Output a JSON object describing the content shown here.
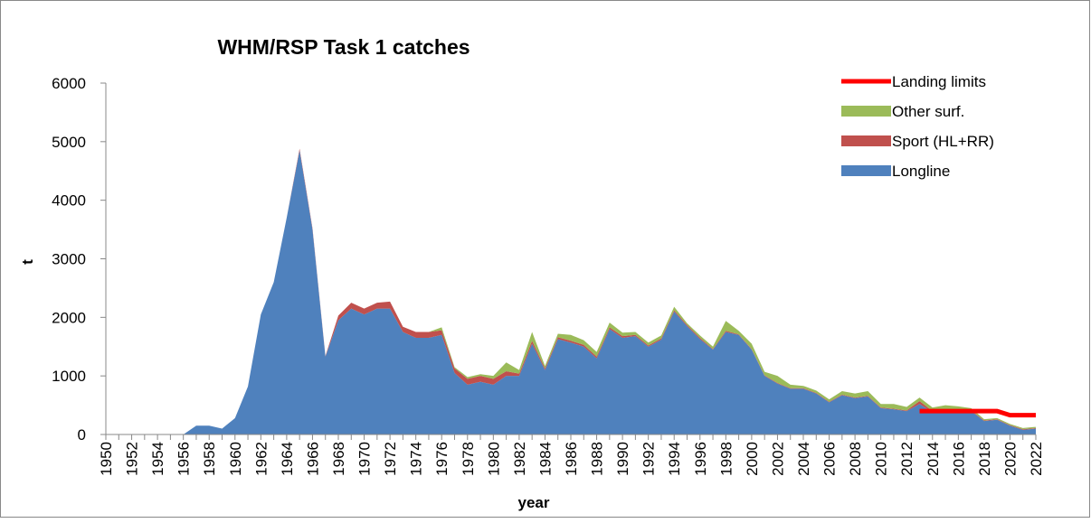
{
  "chart_data": {
    "type": "stacked-area",
    "title": "WHM/RSP Task 1 catches",
    "x_label": "year",
    "y_label": "t",
    "categories": [
      "1950",
      null,
      "1952",
      null,
      "1954",
      null,
      "1956",
      null,
      "1958",
      null,
      "1960",
      null,
      "1962",
      null,
      "1964",
      null,
      "1966",
      null,
      "1968",
      null,
      "1970",
      null,
      "1972",
      null,
      "1974",
      null,
      "1976",
      null,
      "1978",
      null,
      "1980",
      null,
      "1982",
      null,
      "1984",
      null,
      "1986",
      null,
      "1988",
      null,
      "1990",
      null,
      "1992",
      null,
      "1994",
      null,
      "1996",
      null,
      "1998",
      null,
      "2000",
      null,
      "2002",
      null,
      "2004",
      null,
      "2006",
      null,
      "2008",
      null,
      "2010",
      null,
      "2012",
      null,
      "2014",
      null,
      "2016",
      null,
      "2018",
      null,
      "2020",
      null,
      "2022"
    ],
    "series": [
      {
        "name": "Longline",
        "color": "#4f81bd",
        "values": [
          0,
          0,
          0,
          0,
          0,
          0,
          0,
          150,
          150,
          100,
          280,
          820,
          2050,
          2600,
          3700,
          4850,
          3500,
          1330,
          1950,
          2150,
          2050,
          2150,
          2150,
          1750,
          1650,
          1650,
          1700,
          1050,
          850,
          900,
          850,
          1000,
          1000,
          1550,
          1100,
          1630,
          1570,
          1500,
          1300,
          1800,
          1650,
          1680,
          1500,
          1620,
          2100,
          1850,
          1630,
          1450,
          1750,
          1700,
          1450,
          1000,
          870,
          780,
          780,
          700,
          550,
          670,
          620,
          650,
          450,
          430,
          400,
          520,
          380,
          400,
          400,
          400,
          230,
          250,
          150,
          80,
          100
        ]
      },
      {
        "name": "Sport (HL+RR)",
        "color": "#c0504d",
        "values": [
          0,
          0,
          0,
          0,
          0,
          0,
          0,
          0,
          0,
          0,
          0,
          0,
          0,
          0,
          0,
          30,
          20,
          10,
          80,
          100,
          100,
          100,
          120,
          90,
          100,
          100,
          80,
          80,
          100,
          100,
          100,
          80,
          40,
          50,
          30,
          30,
          30,
          30,
          30,
          30,
          30,
          20,
          20,
          20,
          20,
          20,
          20,
          10,
          20,
          10,
          10,
          10,
          10,
          10,
          10,
          10,
          10,
          10,
          10,
          10,
          10,
          10,
          10,
          50,
          20,
          20,
          20,
          10,
          10,
          10,
          10,
          10,
          10
        ]
      },
      {
        "name": "Other surf.",
        "color": "#9bbb59",
        "values": [
          0,
          0,
          0,
          0,
          0,
          0,
          0,
          0,
          0,
          0,
          0,
          0,
          0,
          0,
          0,
          0,
          0,
          0,
          0,
          0,
          0,
          0,
          0,
          0,
          0,
          0,
          50,
          20,
          30,
          30,
          50,
          150,
          60,
          150,
          40,
          60,
          100,
          80,
          80,
          80,
          60,
          50,
          50,
          50,
          60,
          30,
          40,
          40,
          170,
          60,
          90,
          60,
          120,
          60,
          40,
          40,
          40,
          60,
          70,
          80,
          60,
          80,
          60,
          60,
          60,
          80,
          60,
          40,
          20,
          20,
          20,
          20,
          20
        ]
      },
      {
        "name": "Landing limits",
        "color": "#ff0000",
        "kind": "line",
        "values": [
          null,
          null,
          null,
          null,
          null,
          null,
          null,
          null,
          null,
          null,
          null,
          null,
          null,
          null,
          null,
          null,
          null,
          null,
          null,
          null,
          null,
          null,
          null,
          null,
          null,
          null,
          null,
          null,
          null,
          null,
          null,
          null,
          null,
          null,
          null,
          null,
          null,
          null,
          null,
          null,
          null,
          null,
          null,
          null,
          null,
          null,
          null,
          null,
          null,
          null,
          null,
          null,
          null,
          null,
          null,
          null,
          null,
          null,
          null,
          null,
          null,
          null,
          null,
          400,
          400,
          400,
          400,
          400,
          400,
          400,
          330,
          330,
          330
        ]
      }
    ],
    "ylim": [
      0,
      6000
    ],
    "yticks": [
      0,
      1000,
      2000,
      3000,
      4000,
      5000,
      6000
    ],
    "legend": "upper right"
  }
}
